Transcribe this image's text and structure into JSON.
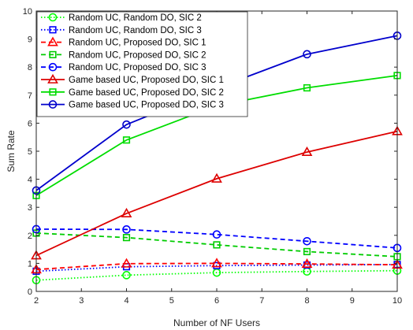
{
  "chart_data": {
    "type": "line",
    "xlabel": "Number of NF Users",
    "ylabel": "Sum Rate",
    "xlim": [
      2,
      10
    ],
    "ylim": [
      0,
      10
    ],
    "xticks": [
      2,
      3,
      4,
      5,
      6,
      7,
      8,
      9,
      10
    ],
    "yticks": [
      0,
      1,
      2,
      3,
      4,
      5,
      6,
      7,
      8,
      9,
      10
    ],
    "grid": false,
    "legend_position": "top-left",
    "x": [
      2,
      4,
      6,
      8,
      10
    ],
    "series": [
      {
        "name": "Random UC, Random DO, SIC 2",
        "color": "#00ff00",
        "line_style": "dotted",
        "marker": "circle",
        "values": [
          0.4,
          0.58,
          0.67,
          0.71,
          0.74
        ]
      },
      {
        "name": "Random UC, Random DO, SIC 3",
        "color": "#0000ff",
        "line_style": "dotted",
        "marker": "square",
        "values": [
          0.72,
          0.88,
          0.92,
          0.94,
          0.96
        ]
      },
      {
        "name": "Random UC, Proposed DO, SIC 1",
        "color": "#ff0000",
        "line_style": "dashed",
        "marker": "triangle",
        "values": [
          0.78,
          0.99,
          1.0,
          0.98,
          0.95
        ]
      },
      {
        "name": "Random UC, Proposed DO, SIC 2",
        "color": "#00cc00",
        "line_style": "dashed",
        "marker": "square",
        "values": [
          2.08,
          1.92,
          1.66,
          1.42,
          1.24
        ]
      },
      {
        "name": "Random UC, Proposed DO, SIC 3",
        "color": "#0000ff",
        "line_style": "dashed",
        "marker": "circle",
        "values": [
          2.22,
          2.21,
          2.03,
          1.79,
          1.55
        ]
      },
      {
        "name": "Game based UC, Proposed DO, SIC 1",
        "color": "#dd0000",
        "line_style": "solid",
        "marker": "triangle",
        "values": [
          1.28,
          2.78,
          4.02,
          4.97,
          5.71
        ]
      },
      {
        "name": "Game based UC, Proposed DO, SIC 2",
        "color": "#00dd00",
        "line_style": "solid",
        "marker": "square",
        "values": [
          3.42,
          5.4,
          6.62,
          7.26,
          7.7
        ]
      },
      {
        "name": "Game based UC, Proposed DO, SIC 3",
        "color": "#0000cc",
        "line_style": "solid",
        "marker": "circle",
        "values": [
          3.6,
          5.95,
          7.25,
          8.46,
          9.12
        ]
      }
    ]
  }
}
